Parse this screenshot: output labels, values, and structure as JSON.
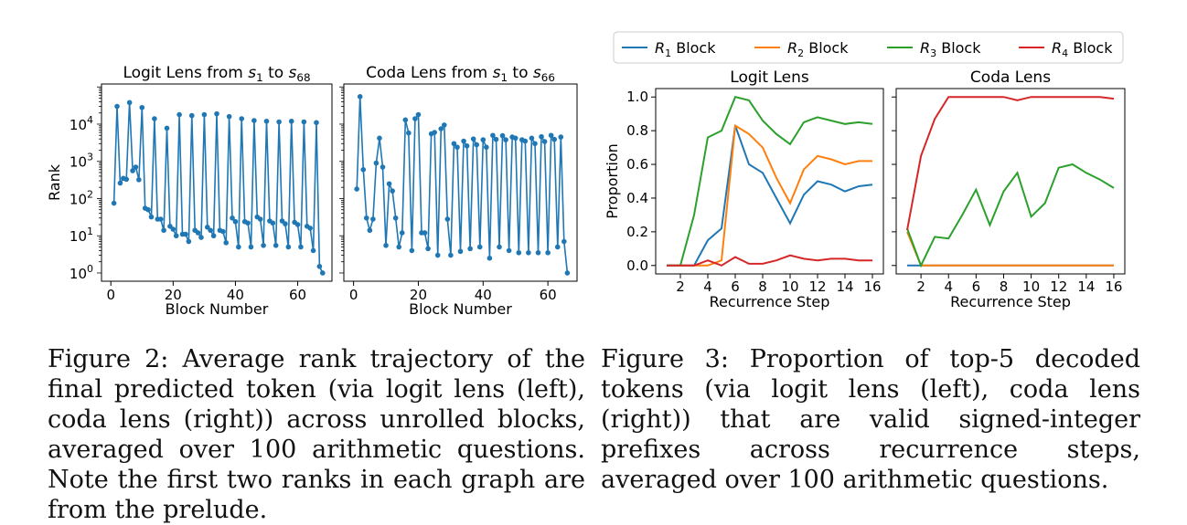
{
  "figure2": {
    "chart_data": [
      {
        "type": "line",
        "title": "Logit Lens from s₁ to s₆₈",
        "title_parts": {
          "main": "Logit Lens from ",
          "s1": "s",
          "s1_sub": "1",
          "mid": " to ",
          "s2": "s",
          "s2_sub": "68"
        },
        "xlabel": "Block Number",
        "ylabel": "Rank",
        "yscale": "log",
        "xlim": [
          -3,
          71
        ],
        "ylim": [
          0.6,
          120000
        ],
        "xticks": [
          0,
          20,
          40,
          60
        ],
        "yticks": [
          1,
          10,
          100,
          1000,
          10000
        ],
        "ytick_labels": [
          {
            "b": "10",
            "e": "0"
          },
          {
            "b": "10",
            "e": "1"
          },
          {
            "b": "10",
            "e": "2"
          },
          {
            "b": "10",
            "e": "3"
          },
          {
            "b": "10",
            "e": "4"
          }
        ],
        "color": "#1f77b4",
        "marker": "circle",
        "x": [
          1,
          2,
          3,
          4,
          5,
          6,
          7,
          8,
          9,
          10,
          11,
          12,
          13,
          14,
          15,
          16,
          17,
          18,
          19,
          20,
          21,
          22,
          23,
          24,
          25,
          26,
          27,
          28,
          29,
          30,
          31,
          32,
          33,
          34,
          35,
          36,
          37,
          38,
          39,
          40,
          41,
          42,
          43,
          44,
          45,
          46,
          47,
          48,
          49,
          50,
          51,
          52,
          53,
          54,
          55,
          56,
          57,
          58,
          59,
          60,
          61,
          62,
          63,
          64,
          65,
          66,
          67,
          68
        ],
        "y": [
          75,
          30000,
          260,
          350,
          330,
          38000,
          560,
          700,
          320,
          28000,
          55,
          50,
          32,
          14000,
          28,
          28,
          14,
          7800,
          18,
          15,
          10,
          18000,
          11,
          11,
          7,
          17000,
          14,
          12,
          9,
          18000,
          17,
          14,
          10,
          19000,
          14,
          13,
          6.5,
          16000,
          30,
          24,
          5,
          14000,
          24,
          22,
          5,
          12500,
          32,
          28,
          5.5,
          12000,
          25,
          22,
          5.5,
          11500,
          25,
          21,
          5,
          12000,
          23,
          20,
          5,
          11500,
          18,
          16,
          4,
          11000,
          1.5,
          1
        ]
      },
      {
        "type": "line",
        "title": "Coda Lens from s₁ to s₆₆",
        "title_parts": {
          "main": "Coda Lens from ",
          "s1": "s",
          "s1_sub": "1",
          "mid": " to ",
          "s2": "s",
          "s2_sub": "66"
        },
        "xlabel": "Block Number",
        "ylabel": "",
        "yscale": "log",
        "xlim": [
          -3,
          69
        ],
        "ylim": [
          0.6,
          120000
        ],
        "xticks": [
          0,
          20,
          40,
          60
        ],
        "color": "#1f77b4",
        "marker": "circle",
        "x": [
          1,
          2,
          3,
          4,
          5,
          6,
          7,
          8,
          9,
          10,
          11,
          12,
          13,
          14,
          15,
          16,
          17,
          18,
          19,
          20,
          21,
          22,
          23,
          24,
          25,
          26,
          27,
          28,
          29,
          30,
          31,
          32,
          33,
          34,
          35,
          36,
          37,
          38,
          39,
          40,
          41,
          42,
          43,
          44,
          45,
          46,
          47,
          48,
          49,
          50,
          51,
          52,
          53,
          54,
          55,
          56,
          57,
          58,
          59,
          60,
          61,
          62,
          63,
          64,
          65,
          66
        ],
        "y": [
          180,
          55000,
          600,
          30,
          14,
          28,
          900,
          4200,
          700,
          5.5,
          250,
          160,
          30,
          5,
          12,
          13000,
          5800,
          4,
          14000,
          18000,
          12,
          12,
          4.5,
          5500,
          6000,
          3,
          7500,
          9500,
          28,
          3,
          3000,
          2400,
          3.8,
          3500,
          2600,
          4.5,
          4000,
          2800,
          5,
          3800,
          2400,
          2.5,
          5000,
          3900,
          5,
          4900,
          3800,
          4,
          4500,
          4200,
          3.5,
          3800,
          3500,
          3.5,
          4200,
          3000,
          3.5,
          4600,
          3400,
          3.5,
          5000,
          3900,
          5,
          4500,
          7,
          1
        ]
      }
    ],
    "caption": "Figure 2: Average rank trajectory of the final predicted token (via logit lens (left), coda lens (right)) across unrolled blocks, averaged over 100 arithmetic questions. Note the first two ranks in each graph are from the prelude."
  },
  "figure3": {
    "legend": [
      {
        "sym": "R",
        "sub": "1",
        "label": " Block",
        "color": "#1f77b4"
      },
      {
        "sym": "R",
        "sub": "2",
        "label": " Block",
        "color": "#ff7f0e"
      },
      {
        "sym": "R",
        "sub": "3",
        "label": " Block",
        "color": "#2ca02c"
      },
      {
        "sym": "R",
        "sub": "4",
        "label": " Block",
        "color": "#d62728"
      }
    ],
    "chart_data": [
      {
        "type": "line",
        "title": "Logit Lens",
        "xlabel": "Recurrence Step",
        "ylabel": "Proportion",
        "xlim": [
          0.2,
          16.8
        ],
        "ylim": [
          -0.05,
          1.05
        ],
        "xticks": [
          2,
          4,
          6,
          8,
          10,
          12,
          14,
          16
        ],
        "yticks": [
          0.0,
          0.2,
          0.4,
          0.6,
          0.8,
          1.0
        ],
        "ytick_labels": [
          "0.0",
          "0.2",
          "0.4",
          "0.6",
          "0.8",
          "1.0"
        ],
        "x": [
          1,
          2,
          3,
          4,
          5,
          6,
          7,
          8,
          9,
          10,
          11,
          12,
          13,
          14,
          15,
          16
        ],
        "series": [
          {
            "name": "R1 Block",
            "color": "#1f77b4",
            "values": [
              0,
              0,
              0,
              0.15,
              0.22,
              0.83,
              0.6,
              0.55,
              0.4,
              0.25,
              0.42,
              0.5,
              0.48,
              0.44,
              0.47,
              0.48
            ]
          },
          {
            "name": "R2 Block",
            "color": "#ff7f0e",
            "values": [
              0,
              0,
              0,
              0,
              0.03,
              0.83,
              0.78,
              0.7,
              0.52,
              0.37,
              0.57,
              0.65,
              0.63,
              0.6,
              0.62,
              0.62
            ]
          },
          {
            "name": "R3 Block",
            "color": "#2ca02c",
            "values": [
              0,
              0,
              0.3,
              0.76,
              0.8,
              1.0,
              0.98,
              0.86,
              0.78,
              0.72,
              0.85,
              0.88,
              0.86,
              0.84,
              0.85,
              0.84
            ]
          },
          {
            "name": "R4 Block",
            "color": "#d62728",
            "values": [
              0,
              0,
              0,
              0.03,
              0,
              0.05,
              0.01,
              0.01,
              0.03,
              0.06,
              0.04,
              0.03,
              0.04,
              0.04,
              0.03,
              0.03
            ]
          }
        ]
      },
      {
        "type": "line",
        "title": "Coda Lens",
        "xlabel": "Recurrence Step",
        "ylabel": "",
        "xlim": [
          0.2,
          16.8
        ],
        "ylim": [
          -0.05,
          1.05
        ],
        "xticks": [
          2,
          4,
          6,
          8,
          10,
          12,
          14,
          16
        ],
        "x": [
          1,
          2,
          3,
          4,
          5,
          6,
          7,
          8,
          9,
          10,
          11,
          12,
          13,
          14,
          15,
          16
        ],
        "series": [
          {
            "name": "R1 Block",
            "color": "#1f77b4",
            "values": [
              0,
              0,
              0,
              0,
              0,
              0,
              0,
              0,
              0,
              0,
              0,
              0,
              0,
              0,
              0,
              0
            ]
          },
          {
            "name": "R2 Block",
            "color": "#ff7f0e",
            "values": [
              0.2,
              0,
              0,
              0,
              0,
              0,
              0,
              0,
              0,
              0,
              0,
              0,
              0,
              0,
              0,
              0
            ]
          },
          {
            "name": "R3 Block",
            "color": "#2ca02c",
            "values": [
              0.22,
              0,
              0.17,
              0.16,
              0.3,
              0.45,
              0.24,
              0.44,
              0.55,
              0.29,
              0.37,
              0.58,
              0.6,
              0.55,
              0.51,
              0.46
            ]
          },
          {
            "name": "R4 Block",
            "color": "#d62728",
            "values": [
              0.21,
              0.65,
              0.87,
              1.0,
              1.0,
              1.0,
              1.0,
              1.0,
              0.98,
              1.0,
              1.0,
              1.0,
              1.0,
              1.0,
              1.0,
              0.99
            ]
          }
        ]
      }
    ],
    "caption": "Figure 3: Proportion of top-5 decoded tokens (via logit lens (left), coda lens (right)) that are valid signed-integer prefixes across recurrence steps, averaged over 100 arithmetic questions."
  }
}
